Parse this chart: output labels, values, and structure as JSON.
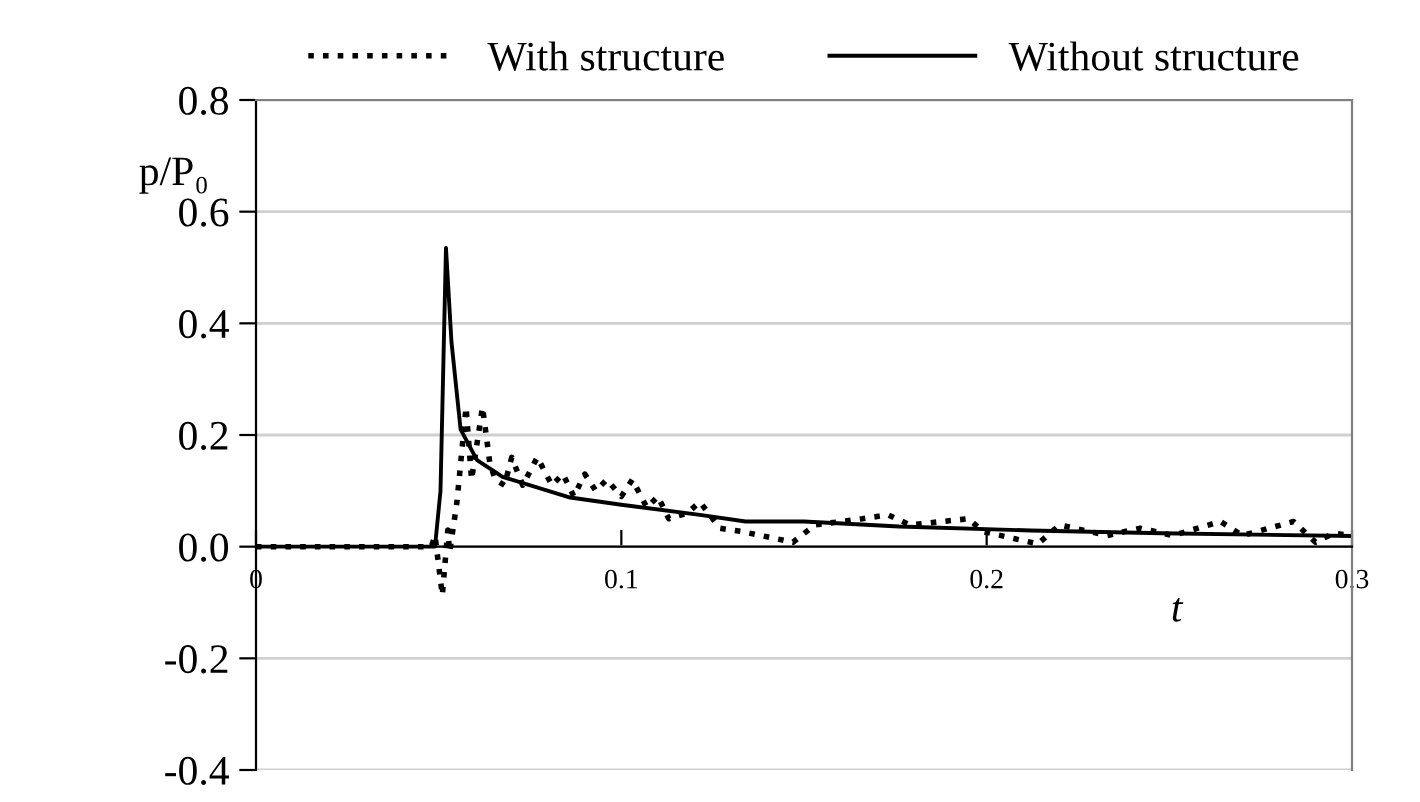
{
  "chart_data": {
    "type": "line",
    "xlabel": "t",
    "ylabel": "p/P₀",
    "legend": "top",
    "grid": "y",
    "marker": "none",
    "xlim": [
      0,
      0.3
    ],
    "ylim": [
      -0.4,
      0.8
    ],
    "xticks": [
      {
        "value": 0,
        "label": "0"
      },
      0.1,
      0.2,
      0.3
    ],
    "yticks": [
      {
        "value": -0.4,
        "label": "-0.4"
      },
      {
        "value": -0.2,
        "label": "-0.2"
      },
      {
        "value": 0,
        "label": "0.0"
      },
      {
        "value": 0.2,
        "label": "0.2"
      },
      {
        "value": 0.4,
        "label": "0.4"
      },
      {
        "value": 0.6,
        "label": "0.6"
      },
      {
        "value": 0.8,
        "label": "0.8"
      }
    ],
    "series": [
      {
        "name": "With structure",
        "color": "#000000",
        "line_style": "dotted",
        "x": [
          0,
          0.048,
          0.049,
          0.051,
          0.0525,
          0.053,
          0.055,
          0.0575,
          0.059,
          0.062,
          0.064,
          0.0655,
          0.068,
          0.07,
          0.073,
          0.077,
          0.081,
          0.084,
          0.087,
          0.09,
          0.093,
          0.096,
          0.1,
          0.103,
          0.107,
          0.11,
          0.113,
          0.118,
          0.1215,
          0.127,
          0.133,
          0.147,
          0.153,
          0.166,
          0.173,
          0.179,
          0.195,
          0.199,
          0.214,
          0.22,
          0.233,
          0.242,
          0.251,
          0.264,
          0.27,
          0.284,
          0.29,
          0.295,
          0.3
        ],
        "values": [
          0,
          0,
          0.02,
          -0.087,
          0.03,
          -0.01,
          0.08,
          0.25,
          0.12,
          0.25,
          0.15,
          0.12,
          0.11,
          0.16,
          0.11,
          0.16,
          0.11,
          0.13,
          0.09,
          0.13,
          0.1,
          0.12,
          0.09,
          0.12,
          0.07,
          0.09,
          0.05,
          0.06,
          0.08,
          0.033,
          0.027,
          0.008,
          0.039,
          0.05,
          0.057,
          0.039,
          0.05,
          0.027,
          0.005,
          0.039,
          0.02,
          0.033,
          0.02,
          0.045,
          0.02,
          0.045,
          0.008,
          0.024,
          0.02
        ]
      },
      {
        "name": "Without structure",
        "color": "#000000",
        "line_style": "solid",
        "x": [
          0,
          0.049,
          0.0505,
          0.052,
          0.0535,
          0.056,
          0.0605,
          0.0675,
          0.086,
          0.1,
          0.1215,
          0.134,
          0.15,
          0.176,
          0.212,
          0.248,
          0.3
        ],
        "values": [
          0,
          0,
          0.1,
          0.535,
          0.367,
          0.21,
          0.155,
          0.125,
          0.088,
          0.075,
          0.057,
          0.045,
          0.045,
          0.036,
          0.029,
          0.024,
          0.019
        ]
      }
    ]
  }
}
